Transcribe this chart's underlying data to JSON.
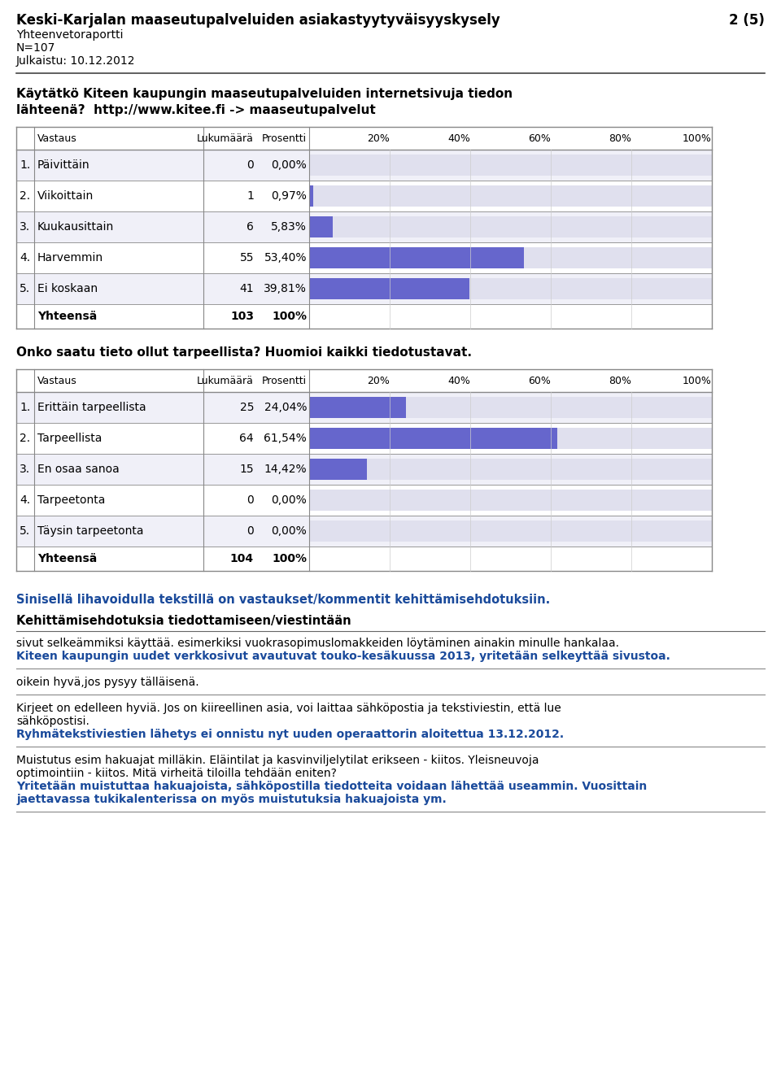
{
  "title": "Keski-Karjalan maaseutupalveluiden asiakastyytyväisyyskysely",
  "page": "2 (5)",
  "subtitle1": "Yhteenvetoraportti",
  "subtitle2": "N=107",
  "subtitle3": "Julkaistu: 10.12.2012",
  "question1_line1": "Käytätkö Kiteen kaupungin maaseutupalveluiden internetsivuja tiedon",
  "question1_line2": "lähteenä?  http://www.kitee.fi -> maaseutupalvelut",
  "table1_rows": [
    [
      "1.",
      "Päivittäin",
      "0",
      "0,00%",
      0.0
    ],
    [
      "2.",
      "Viikoittain",
      "1",
      "0,97%",
      0.97
    ],
    [
      "3.",
      "Kuukausittain",
      "6",
      "5,83%",
      5.83
    ],
    [
      "4.",
      "Harvemmin",
      "55",
      "53,40%",
      53.4
    ],
    [
      "5.",
      "Ei koskaan",
      "41",
      "39,81%",
      39.81
    ]
  ],
  "table1_total_n": "103",
  "question2_line1": "Onko saatu tieto ollut tarpeellista? Huomioi kaikki tiedotustavat.",
  "table2_rows": [
    [
      "1.",
      "Erittäin tarpeellista",
      "25",
      "24,04%",
      24.04
    ],
    [
      "2.",
      "Tarpeellista",
      "64",
      "61,54%",
      61.54
    ],
    [
      "3.",
      "En osaa sanoa",
      "15",
      "14,42%",
      14.42
    ],
    [
      "4.",
      "Tarpeetonta",
      "0",
      "0,00%",
      0.0
    ],
    [
      "5.",
      "Täysin tarpeetonta",
      "0",
      "0,00%",
      0.0
    ]
  ],
  "table2_total_n": "104",
  "blue_bold_text": "Sinisellä lihavoidulla tekstillä on vastaukset/kommentit kehittämisehdotuksiin.",
  "section_header": "Kehittämisehdotuksia tiedottamiseen/viestintään",
  "comment_blocks": [
    {
      "normal": "sivut selkeämmiksi käyttää. esimerkiksi vuokrasopimuslomakkeiden löytäminen ainakin minulle hankalaa.",
      "bold_blue": "Kiteen kaupungin uudet verkkosivut avautuvat touko-kesäkuussa 2013, yritetään selkeyttää sivustoa."
    },
    {
      "normal": "oikein hyvä,jos pysyy tälläisenä.",
      "bold_blue": ""
    },
    {
      "normal": "Kirjeet on edelleen hyviä. Jos on kiireellinen asia, voi laittaa sähköpostia ja tekstiviestin, että lue sähköpostisi.",
      "bold_blue": "Ryhmätekstiviestien lähetys ei onnistu nyt uuden operaattorin aloitettua 13.12.2012."
    },
    {
      "normal": "Muistutus esim hakuajat milläkin. Eläintilat ja kasvinviljelytilat erikseen - kiitos. Yleisneuvoja optimointiin - kiitos. Mitä virheitä tiloilla tehdään eniten?",
      "bold_blue": "Yritetään muistuttaa hakuajoista, sähköpostilla tiedotteita voidaan lähettää useammin. Vuosittain jaettavassa tukikalenterissa on myös muistutuksia hakuajoista ym."
    }
  ],
  "bar_color": "#6666cc",
  "bar_bg_color": "#e0e0ee",
  "table_border_color": "#999999",
  "table_bg_row1": "#f0f0f8",
  "table_bg_row2": "#ffffff",
  "text_color": "#000000",
  "blue_color": "#1a4a9b",
  "header_sep_color": "#555555"
}
